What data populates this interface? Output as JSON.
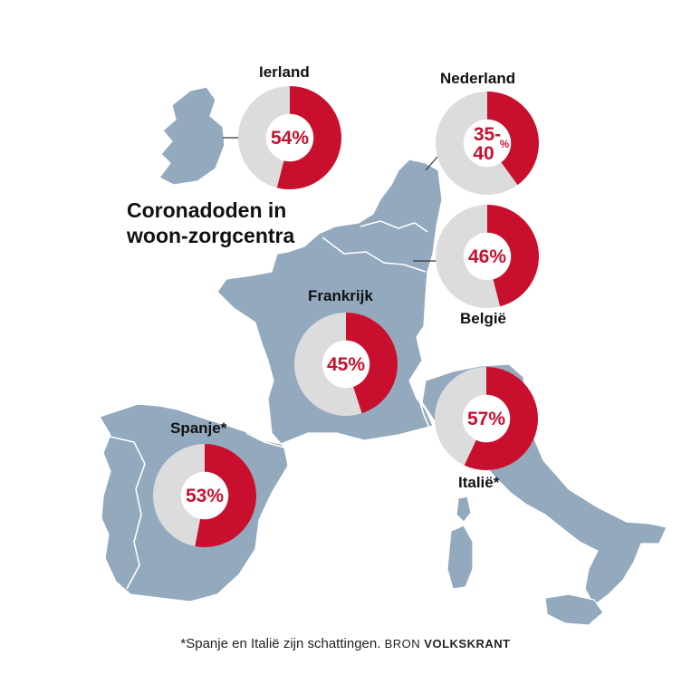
{
  "title": {
    "line1": "Coronadoden in",
    "line2": "woon-zorgcentra"
  },
  "colors": {
    "highlight": "#c8102e",
    "remainder": "#dcdcdc",
    "land": "#93a9be"
  },
  "chart_data": {
    "type": "pie",
    "variant": "donut",
    "unit": "%",
    "slices": [
      {
        "country": "Ierland",
        "value": 54,
        "label": "54%"
      },
      {
        "country": "Nederland",
        "value_min": 35,
        "value_max": 40,
        "value": 40,
        "label_top": "35-",
        "label_bottom": "40",
        "label": "35-40%"
      },
      {
        "country": "België",
        "value": 46,
        "label": "46%"
      },
      {
        "country": "Frankrijk",
        "value": 45,
        "label": "45%"
      },
      {
        "country": "Italië*",
        "value": 57,
        "label": "57%"
      },
      {
        "country": "Spanje*",
        "value": 53,
        "label": "53%"
      }
    ]
  },
  "footnote": {
    "text": "*Spanje en Italië zijn schattingen.",
    "source_word": "BRON",
    "source_name": "VOLKSKRANT"
  }
}
